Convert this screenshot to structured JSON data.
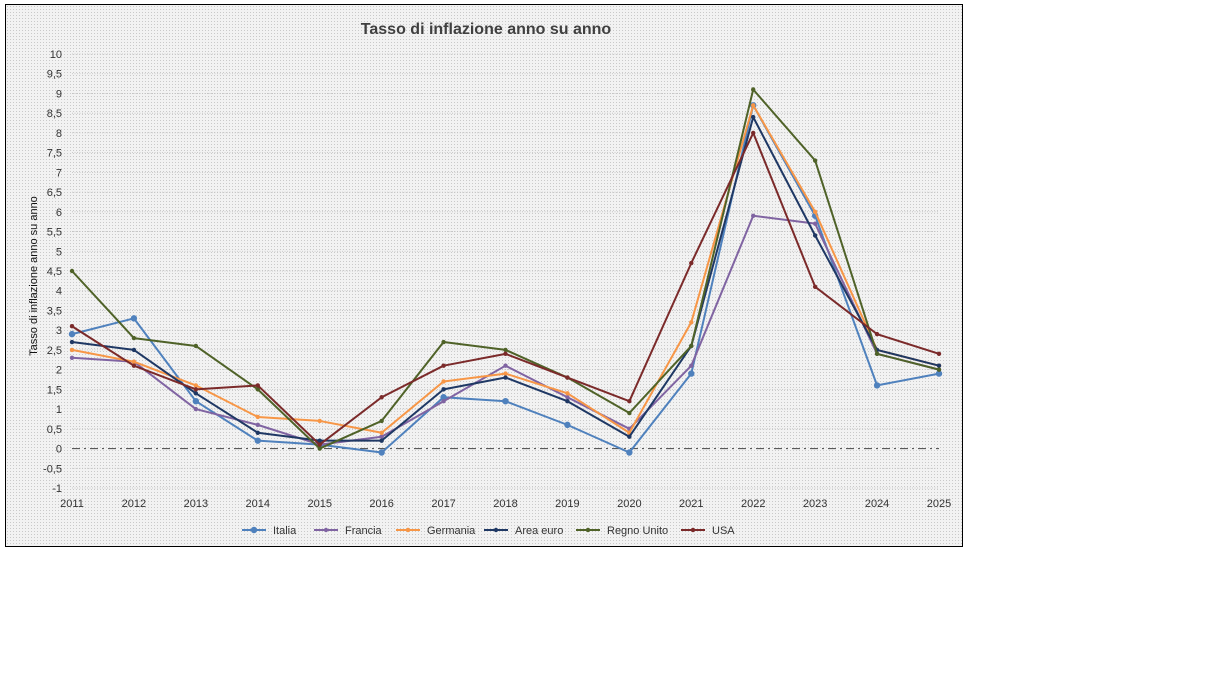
{
  "chart_data": {
    "type": "line",
    "title": "Tasso di inflazione anno su anno",
    "xlabel": "",
    "ylabel": "Tasso di inflazione anno su anno",
    "categories": [
      "2011",
      "2012",
      "2013",
      "2014",
      "2015",
      "2016",
      "2017",
      "2018",
      "2019",
      "2020",
      "2021",
      "2022",
      "2023",
      "2024",
      "2025"
    ],
    "ylim": [
      -1,
      10
    ],
    "yticks": [
      "-1",
      "-0,5",
      "0",
      "0,5",
      "1",
      "1,5",
      "2",
      "2,5",
      "3",
      "3,5",
      "4",
      "4,5",
      "5",
      "5,5",
      "6",
      "6,5",
      "7",
      "7,5",
      "8",
      "8,5",
      "9",
      "9,5",
      "10"
    ],
    "grid": true,
    "zero_line": "dash-dot",
    "legend_position": "bottom",
    "series": [
      {
        "name": "Italia",
        "color": "#4f81bd",
        "marker": "circle",
        "values": [
          2.9,
          3.3,
          1.2,
          0.2,
          0.1,
          -0.1,
          1.3,
          1.2,
          0.6,
          -0.1,
          1.9,
          8.7,
          5.9,
          1.6,
          1.9
        ]
      },
      {
        "name": "Francia",
        "color": "#8064a2",
        "marker": "dot",
        "values": [
          2.3,
          2.2,
          1.0,
          0.6,
          0.1,
          0.3,
          1.2,
          2.1,
          1.3,
          0.5,
          2.1,
          5.9,
          5.7,
          2.4,
          2.0
        ]
      },
      {
        "name": "Germania",
        "color": "#f79646",
        "marker": "dot",
        "values": [
          2.5,
          2.2,
          1.6,
          0.8,
          0.7,
          0.4,
          1.7,
          1.9,
          1.4,
          0.4,
          3.2,
          8.7,
          6.0,
          2.5,
          2.1
        ]
      },
      {
        "name": "Area euro",
        "color": "#1f3864",
        "marker": "dot",
        "values": [
          2.7,
          2.5,
          1.4,
          0.4,
          0.2,
          0.2,
          1.5,
          1.8,
          1.2,
          0.3,
          2.6,
          8.4,
          5.4,
          2.5,
          2.1
        ]
      },
      {
        "name": "Regno Unito",
        "color": "#4f6228",
        "marker": "dot",
        "values": [
          4.5,
          2.8,
          2.6,
          1.5,
          0.0,
          0.7,
          2.7,
          2.5,
          1.8,
          0.9,
          2.6,
          9.1,
          7.3,
          2.4,
          2.0
        ]
      },
      {
        "name": "USA",
        "color": "#7b2a2a",
        "marker": "dot",
        "values": [
          3.1,
          2.1,
          1.5,
          1.6,
          0.1,
          1.3,
          2.1,
          2.4,
          1.8,
          1.2,
          4.7,
          8.0,
          4.1,
          2.9,
          2.4
        ]
      }
    ]
  }
}
